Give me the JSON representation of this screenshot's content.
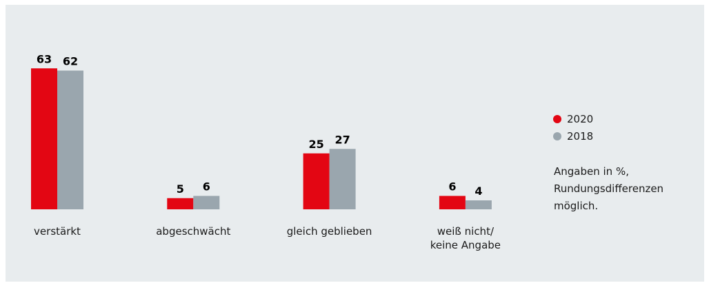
{
  "chart_data": {
    "type": "bar",
    "categories": [
      "verstärkt",
      "abgeschwächt",
      "gleich geblieben",
      "weiß nicht/\nkeine Angabe"
    ],
    "series": [
      {
        "name": "2020",
        "color": "#e30613",
        "values": [
          63,
          5,
          25,
          6
        ]
      },
      {
        "name": "2018",
        "color": "#9aa6ae",
        "values": [
          62,
          6,
          27,
          4
        ]
      }
    ],
    "note": "Angaben in %,\nRundungsdifferenzen\nmöglich."
  }
}
